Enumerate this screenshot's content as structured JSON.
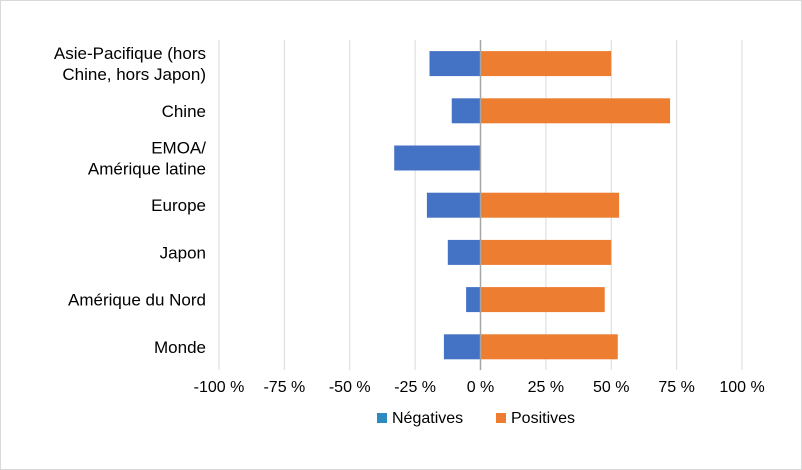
{
  "chart_data": {
    "type": "bar",
    "orientation": "horizontal",
    "stacked": "diverging",
    "categories": [
      [
        "Asie-Pacifique (hors",
        "Chine, hors Japon)"
      ],
      [
        "Chine"
      ],
      [
        "EMOA/",
        "Amérique latine"
      ],
      [
        "Europe"
      ],
      [
        "Japon"
      ],
      [
        "Amérique du Nord"
      ],
      [
        "Monde"
      ]
    ],
    "series": [
      {
        "name": "Négatives",
        "values": [
          -19.5,
          -11,
          -33,
          -20.5,
          -12.5,
          -5.5,
          -14
        ],
        "color": "#4472C4"
      },
      {
        "name": "Positives",
        "values": [
          50,
          72.5,
          0,
          53,
          50,
          47.5,
          52.5
        ],
        "color": "#ED7D31"
      }
    ],
    "xlim": [
      -100,
      100
    ],
    "xticks": [
      -100,
      -75,
      -50,
      -25,
      0,
      25,
      50,
      75,
      100
    ],
    "xtick_labels": [
      "-100 %",
      "-75 %",
      "-50 %",
      "-25 %",
      "0 %",
      "25 %",
      "50 %",
      "75 %",
      "100 %"
    ],
    "grid": true,
    "legend_position": "bottom",
    "legend": [
      {
        "label": "Négatives",
        "color": "#2E8BC0"
      },
      {
        "label": "Positives",
        "color": "#ED7D31"
      }
    ],
    "title": "",
    "xlabel": "",
    "ylabel": ""
  }
}
